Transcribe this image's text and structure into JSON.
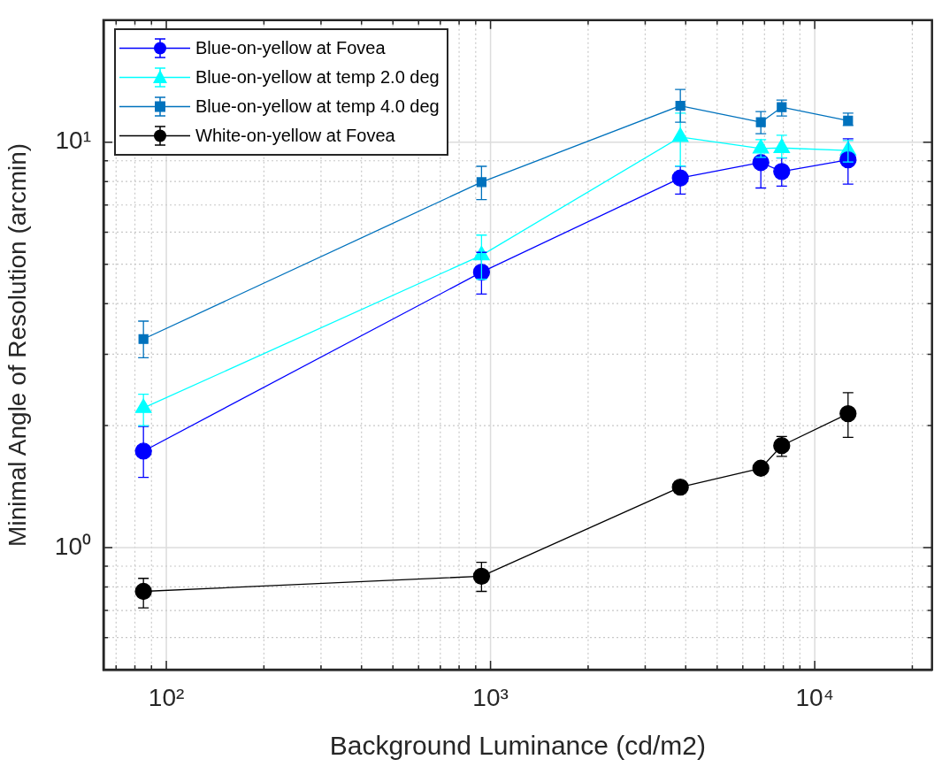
{
  "chart_data": {
    "type": "line",
    "xlabel": "Background Luminance (cd/m2)",
    "ylabel": "Minimal Angle of Resolution (arcmin)",
    "log": "xy",
    "grid": true,
    "legend": "top left",
    "xlim": [
      64,
      23000
    ],
    "ylim": [
      0.5,
      20
    ],
    "xticks": [
      {
        "value": 70,
        "label": null
      },
      {
        "value": 80,
        "label": null
      },
      {
        "value": 90,
        "label": null
      },
      {
        "value": 100,
        "label": "10²"
      },
      {
        "value": 200,
        "label": null
      },
      {
        "value": 300,
        "label": null
      },
      {
        "value": 400,
        "label": null
      },
      {
        "value": 500,
        "label": null
      },
      {
        "value": 600,
        "label": null
      },
      {
        "value": 700,
        "label": null
      },
      {
        "value": 800,
        "label": null
      },
      {
        "value": 900,
        "label": null
      },
      {
        "value": 1000,
        "label": "10³"
      },
      {
        "value": 2000,
        "label": null
      },
      {
        "value": 3000,
        "label": null
      },
      {
        "value": 4000,
        "label": null
      },
      {
        "value": 5000,
        "label": null
      },
      {
        "value": 6000,
        "label": null
      },
      {
        "value": 7000,
        "label": null
      },
      {
        "value": 8000,
        "label": null
      },
      {
        "value": 9000,
        "label": null
      },
      {
        "value": 10000,
        "label": "10⁴"
      },
      {
        "value": 20000,
        "label": null
      }
    ],
    "yticks": [
      {
        "value": 0.6,
        "label": null
      },
      {
        "value": 0.7,
        "label": null
      },
      {
        "value": 0.8,
        "label": null
      },
      {
        "value": 0.9,
        "label": null
      },
      {
        "value": 1,
        "label": "10⁰"
      },
      {
        "value": 2,
        "label": null
      },
      {
        "value": 3,
        "label": null
      },
      {
        "value": 4,
        "label": null
      },
      {
        "value": 5,
        "label": null
      },
      {
        "value": 6,
        "label": null
      },
      {
        "value": 7,
        "label": null
      },
      {
        "value": 8,
        "label": null
      },
      {
        "value": 9,
        "label": null
      },
      {
        "value": 10,
        "label": "10¹"
      }
    ],
    "x": [
      85,
      938,
      3850,
      6820,
      7910,
      12670
    ],
    "series": [
      {
        "name": "Blue-on-yellow at Fovea",
        "color": "#0000ff",
        "marker": "circle",
        "values": [
          1.73,
          4.78,
          8.16,
          8.91,
          8.47,
          9.05
        ],
        "errors": [
          [
            1.49,
            1.99
          ],
          [
            4.22,
            5.35
          ],
          [
            7.45,
            8.73
          ],
          [
            7.71,
            9.18
          ],
          [
            7.79,
            9.14
          ],
          [
            7.88,
            10.2
          ]
        ]
      },
      {
        "name": "Blue-on-yellow at temp 2.0 deg",
        "color": "#00ffff",
        "marker": "triangle",
        "values": [
          2.21,
          5.26,
          10.3,
          9.65,
          9.68,
          9.54
        ],
        "errors": [
          [
            2.0,
            2.39
          ],
          [
            4.59,
            5.9
          ],
          [
            8.74,
            11.8
          ],
          [
            9.18,
            10.15
          ],
          [
            9.15,
            10.4
          ],
          [
            8.94,
            10.1
          ]
        ]
      },
      {
        "name": "Blue-on-yellow at temp 4.0 deg",
        "color": "#0072bd",
        "marker": "square",
        "values": [
          3.27,
          7.97,
          12.3,
          11.2,
          12.2,
          11.3
        ],
        "errors": [
          [
            2.94,
            3.62
          ],
          [
            7.22,
            8.72
          ],
          [
            11.2,
            13.5
          ],
          [
            10.5,
            11.9
          ],
          [
            11.6,
            12.7
          ],
          [
            11.0,
            11.8
          ]
        ]
      },
      {
        "name": "White-on-yellow at Fovea",
        "color": "#000000",
        "marker": "circle",
        "values": [
          0.78,
          0.85,
          1.41,
          1.57,
          1.785,
          2.14
        ],
        "errors": [
          [
            0.71,
            0.84
          ],
          [
            0.78,
            0.92
          ],
          null,
          null,
          [
            1.68,
            1.88
          ],
          [
            1.87,
            2.41
          ]
        ]
      }
    ]
  }
}
